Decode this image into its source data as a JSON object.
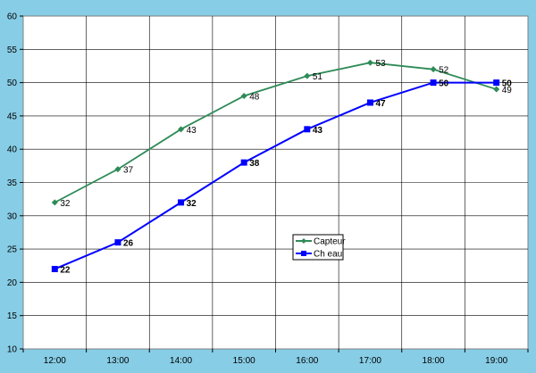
{
  "chart_data": {
    "type": "line",
    "categories": [
      "12:00",
      "13:00",
      "14:00",
      "15:00",
      "16:00",
      "17:00",
      "18:00",
      "19:00"
    ],
    "ylim": [
      10,
      60
    ],
    "yticks": [
      10,
      15,
      20,
      25,
      30,
      35,
      40,
      45,
      50,
      55,
      60
    ],
    "grid": true,
    "legend_position": "center-right",
    "series": [
      {
        "name": "Capteur",
        "values": [
          32,
          37,
          43,
          48,
          51,
          53,
          52,
          49
        ],
        "color": "#2e8b57",
        "marker": "diamond",
        "bold_labels": false
      },
      {
        "name": "Ch eau",
        "values": [
          22,
          26,
          32,
          38,
          43,
          47,
          50,
          50
        ],
        "color": "#0000ff",
        "marker": "square",
        "bold_labels": true
      }
    ]
  }
}
